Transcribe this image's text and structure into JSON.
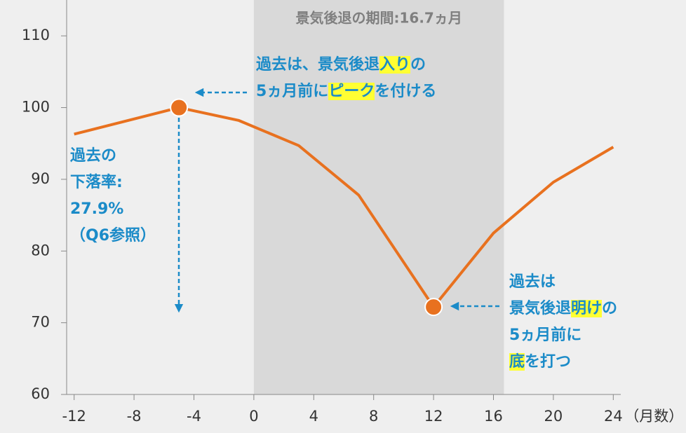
{
  "chart_data": {
    "type": "line",
    "x": [
      -12,
      -5,
      -1,
      3,
      7,
      12,
      16,
      20,
      24
    ],
    "values": [
      96.3,
      100,
      98.2,
      94.7,
      87.8,
      72.2,
      82.5,
      89.6,
      94.5
    ],
    "color": "#e8711f",
    "xlim": [
      -12.5,
      24.5
    ],
    "xticks": [
      -12,
      -8,
      -4,
      0,
      4,
      8,
      12,
      16,
      20,
      24
    ],
    "ylim": [
      60,
      115
    ],
    "yticks": [
      60,
      70,
      80,
      90,
      100,
      110
    ],
    "xlabel": "（月数）",
    "recession": {
      "start": 0,
      "end": 16.7,
      "label": "景気後退の期間:16.7ヵ月"
    },
    "annotations": [
      {
        "lines": [
          [
            {
              "text": "過去は、景気後退"
            },
            {
              "text": "入り",
              "highlight": true
            },
            {
              "text": "の"
            }
          ],
          [
            {
              "text": "5ヵ月前に"
            },
            {
              "text": "ピーク",
              "highlight": true
            },
            {
              "text": "を付ける"
            }
          ]
        ]
      },
      {
        "lines": [
          [
            {
              "text": "過去の"
            }
          ],
          [
            {
              "text": "下落率:"
            }
          ],
          [
            {
              "text": " 27.9%"
            }
          ],
          [
            {
              "text": "（Q6参照）"
            }
          ]
        ]
      },
      {
        "lines": [
          [
            {
              "text": "過去は"
            }
          ],
          [
            {
              "text": "景気後退"
            },
            {
              "text": "明け",
              "highlight": true
            },
            {
              "text": "の"
            }
          ],
          [
            {
              "text": "5ヵ月前に"
            }
          ],
          [
            {
              "text": "底",
              "highlight": true
            },
            {
              "text": "を打つ"
            }
          ]
        ]
      }
    ]
  }
}
